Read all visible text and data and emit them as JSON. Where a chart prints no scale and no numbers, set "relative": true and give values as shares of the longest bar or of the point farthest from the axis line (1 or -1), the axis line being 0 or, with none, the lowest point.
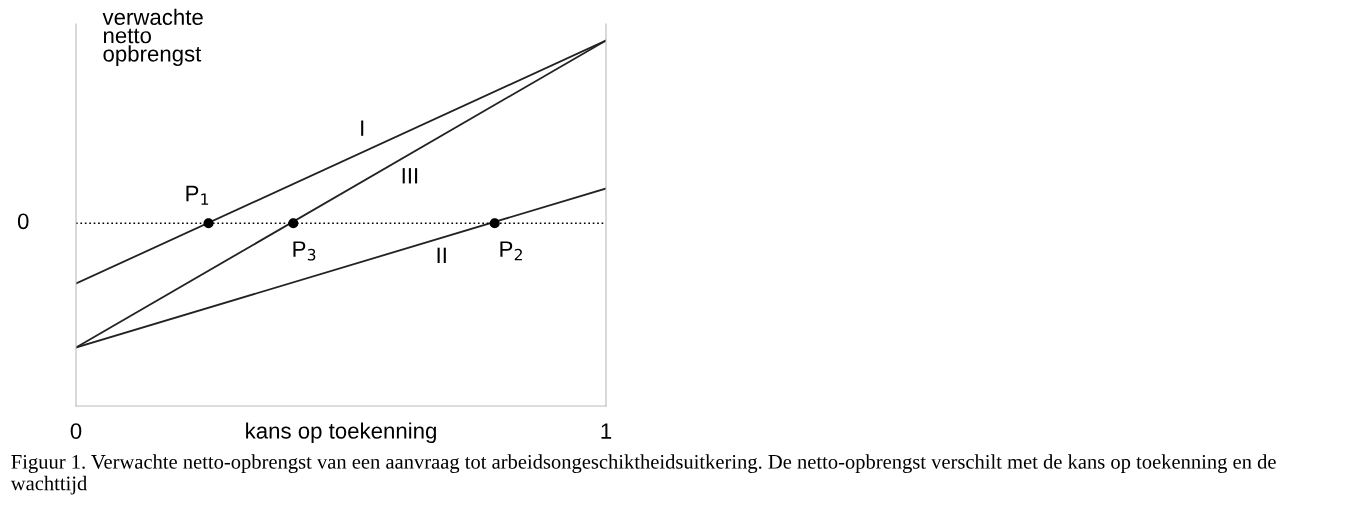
{
  "chart_data": {
    "type": "line",
    "relative": true,
    "xlabel": "kans op toekenning",
    "ylabel": "verwachte\nnetto\nopbrengst",
    "xlim": [
      0,
      1
    ],
    "xticks": [
      0,
      1
    ],
    "series": [
      {
        "name": "I",
        "color": "#222222",
        "x": [
          0,
          1
        ],
        "values": [
          -0.33,
          1
        ]
      },
      {
        "name": "II",
        "color": "#222222",
        "x": [
          0,
          1
        ],
        "values": [
          -0.68,
          0.19
        ]
      },
      {
        "name": "III",
        "color": "#222222",
        "x": [
          0,
          1
        ],
        "values": [
          -0.68,
          1
        ]
      },
      {
        "type": "scatter",
        "color": "#000000",
        "marker": "circle",
        "x": [
          0.25,
          0.79,
          0.41
        ],
        "values": [
          0,
          0,
          0
        ]
      }
    ],
    "ref_lines": [
      {
        "axis": "y",
        "value": 0,
        "label": "0",
        "color": "#000000",
        "line_style": "dotted"
      }
    ],
    "annotations": [
      {
        "text": "P$_{1}$",
        "x": 0.25,
        "y": 0
      },
      {
        "text": "P$_{2}$",
        "x": 0.79,
        "y": 0
      },
      {
        "text": "P$_{3}$",
        "x": 0.41,
        "y": 0
      },
      "Figuur 1. Verwachte netto-opbrengst van een aanvraag tot arbeidsongeschiktheidsuitkering. De netto-opbrengst verschilt met de kans op toekenning en de wachttijd"
    ],
    "grid": false,
    "legend": false
  }
}
